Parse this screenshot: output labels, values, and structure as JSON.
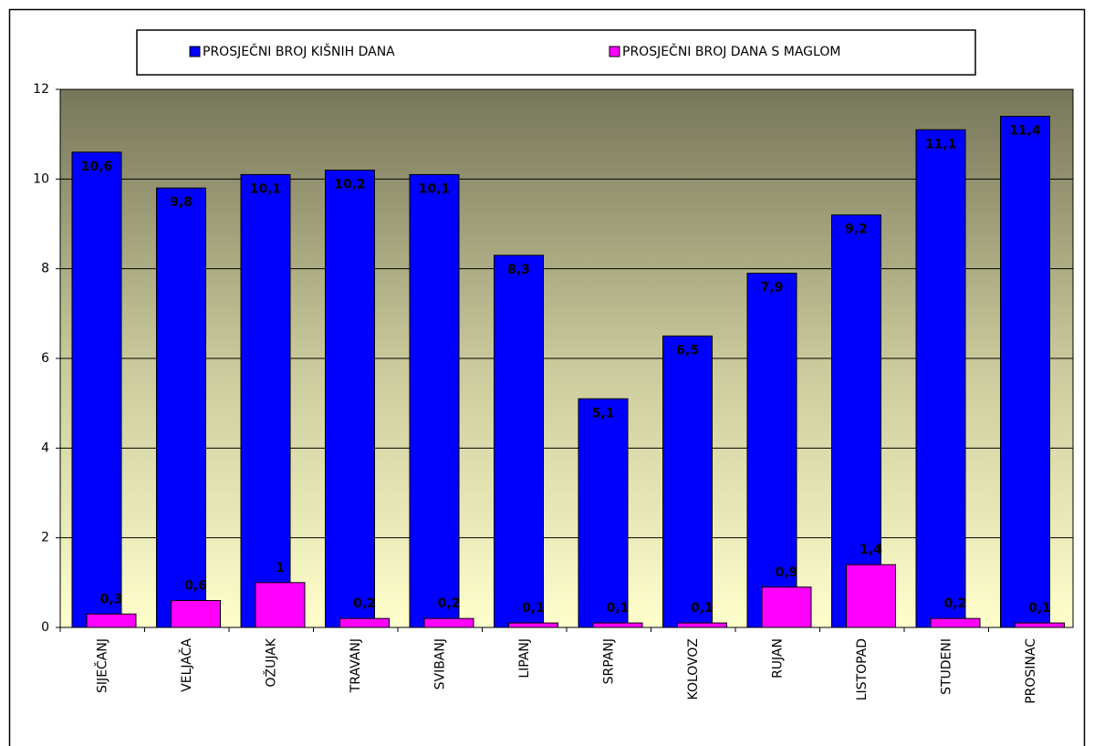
{
  "chart_data": {
    "type": "bar",
    "categories": [
      "SIJEČANJ",
      "VELJAČA",
      "OŽUJAK",
      "TRAVANJ",
      "SVIBANJ",
      "LIPANJ",
      "SRPANJ",
      "KOLOVOZ",
      "RUJAN",
      "LISTOPAD",
      "STUDENI",
      "PROSINAC"
    ],
    "series": [
      {
        "name": "PROSJEČNI BROJ KIŠNIH DANA",
        "color": "#0000ff",
        "values": [
          10.6,
          9.8,
          10.1,
          10.2,
          10.1,
          8.3,
          5.1,
          6.5,
          7.9,
          9.2,
          11.1,
          11.4
        ],
        "value_labels": [
          "10,6",
          "9,8",
          "10,1",
          "10,2",
          "10,1",
          "8,3",
          "5,1",
          "6,5",
          "7,9",
          "9,2",
          "11,1",
          "11,4"
        ]
      },
      {
        "name": "PROSJEČNI BROJ DANA S MAGLOM",
        "color": "#ff00ff",
        "values": [
          0.3,
          0.6,
          1,
          0.2,
          0.2,
          0.1,
          0.1,
          0.1,
          0.9,
          1.4,
          0.2,
          0.1
        ],
        "value_labels": [
          "0,3",
          "0,6",
          "1",
          "0,2",
          "0,2",
          "0,1",
          "0,1",
          "0,1",
          "0,9",
          "1,4",
          "0,2",
          "0,1"
        ]
      }
    ],
    "ylim": [
      0,
      12
    ],
    "yticks": [
      0,
      2,
      4,
      6,
      8,
      10,
      12
    ],
    "grid": true,
    "legend": "top"
  }
}
